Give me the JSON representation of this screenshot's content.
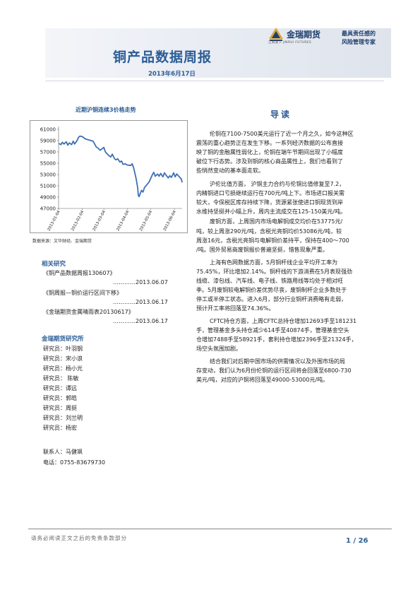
{
  "header": {
    "title": "铜产品数据周报",
    "date": "2013年6月17日",
    "logo_name": "金瑞期货",
    "logo_en": "江铜旗下  JINRUI FUTURES",
    "slogan_1": "最具责任感的",
    "slogan_2": "风险管理专家"
  },
  "chart_data": {
    "type": "line",
    "title": "近期沪铜连续3价格走势",
    "source": "数据来源：文华财经、金瑞期货",
    "ylim": [
      47000,
      61000
    ],
    "yticks": [
      "61000",
      "59000",
      "57000",
      "55000",
      "53000",
      "51000",
      "49000",
      "47000"
    ],
    "xticks": [
      "2013-01-04",
      "2013-02-04",
      "2013-03-04",
      "2013-04-04",
      "2013-05-04",
      "2013-06-04"
    ],
    "series": [
      {
        "color": "#3f6fb5",
        "x": [
          "2013-01-04",
          "2013-01-07",
          "2013-01-09",
          "2013-01-11",
          "2013-01-14",
          "2013-01-16",
          "2013-01-18",
          "2013-01-21",
          "2013-01-23",
          "2013-01-25",
          "2013-01-28",
          "2013-01-30",
          "2013-02-01",
          "2013-02-04",
          "2013-02-06",
          "2013-02-08",
          "2013-02-18",
          "2013-02-20",
          "2013-02-22",
          "2013-02-25",
          "2013-02-27",
          "2013-03-01",
          "2013-03-04",
          "2013-03-06",
          "2013-03-08",
          "2013-03-11",
          "2013-03-13",
          "2013-03-15",
          "2013-03-18",
          "2013-03-20",
          "2013-03-22",
          "2013-03-25",
          "2013-03-27",
          "2013-03-29",
          "2013-04-01",
          "2013-04-03",
          "2013-04-08",
          "2013-04-10",
          "2013-04-12",
          "2013-04-15",
          "2013-04-16",
          "2013-04-17",
          "2013-04-18",
          "2013-04-19",
          "2013-04-22",
          "2013-04-24",
          "2013-04-26",
          "2013-05-02",
          "2013-05-06",
          "2013-05-08",
          "2013-05-10",
          "2013-05-13",
          "2013-05-15",
          "2013-05-17",
          "2013-05-20",
          "2013-05-22",
          "2013-05-24",
          "2013-05-27",
          "2013-05-29",
          "2013-05-31",
          "2013-06-03",
          "2013-06-05",
          "2013-06-07",
          "2013-06-13",
          "2013-06-14"
        ],
        "y": [
          58500,
          58300,
          58700,
          58400,
          58800,
          58200,
          58600,
          58300,
          58900,
          58400,
          59000,
          59600,
          59800,
          59700,
          59500,
          59300,
          58900,
          58400,
          57900,
          57600,
          57300,
          57500,
          57800,
          57000,
          56700,
          56300,
          56100,
          56600,
          55800,
          55600,
          55800,
          55200,
          55400,
          54800,
          54900,
          54700,
          54600,
          54900,
          54100,
          52300,
          51500,
          50700,
          49300,
          49100,
          50200,
          49900,
          50700,
          51700,
          52900,
          53400,
          52700,
          53100,
          52700,
          53200,
          52600,
          53300,
          52900,
          52400,
          52800,
          52500,
          53300,
          52600,
          53100,
          52200,
          51600
        ]
      }
    ]
  },
  "sidebar": {
    "research_heading": "相关研究",
    "reports": [
      {
        "title": "《铜产品数据周报130607》",
        "date": "…………2013.06.07"
      },
      {
        "title": "《铜周报—铜价运行区间下移》",
        "date": "…………2013.06.17"
      },
      {
        "title": "《金瑞期货金属晴雨表20130617》",
        "date": "…………2013.06.17"
      }
    ],
    "institute_heading": "金瑞期货研究所",
    "researchers": [
      "研究员：叶羽钢",
      "研究员：宋小浪",
      "研究员：杨小光",
      "研究员： 陈敏",
      "研究员：谭远",
      "研究员：郭皓",
      "研究员：周挺",
      "研究员：刘兰明",
      "研究员：杨宏"
    ],
    "contact_name": "联系人：马健飒",
    "contact_phone": "电话：0755-83679730"
  },
  "intro": {
    "heading": "导读",
    "lines": [
      "伦铜在7100-7500美元运行了近一个月之久，如今这种区",
      "震荡的重心趋势正在发生下移。一系列经济数据的公布直接",
      "映了铜的金融属性弱化上，伦铜在端午节期间出现了小幅度",
      "破位下行态势。涉及到铜的核心商品属性上，我们也看到了",
      "些悄然变动的基本面走软。",
      "沪伦比值方面， 沪铜主力合约与伦铜比值修复至7.2，",
      "内精铜进口亏损继续运行在700元/吨上下。市场进口报关需",
      "较大，令保税区库存持续下降，货源紧张使进口铜现货到岸",
      "水维持坚挺并小幅上升，周内主流成交在125-150美元/吨。",
      "废铜方面，上周国内市场电解铜成交均价在53775元/",
      "吨，较上周涨290元/吨，含税光亮铜均价53086元/吨，较",
      "周涨16元，含税光亮铜与电解铜价差持平，保持在400～700",
      "/吨。国外贸易商废铜报价普遍坚挺，惜售现象严重。",
      "上海有色网数据方面，5月铜杆线企业平均开工率为",
      "75.45%，环比增加2.14%。铜杆线的下游消费在5月表现强劲",
      "线缆、漆包线、汽车线、电子线、铁路用线等均处于相对旺",
      "季。5月废铜较电解铜价差优势尽丧，废铜制杆企业多数处于",
      "停工或半停工状态。进入6月，部分行业铜杆消费略有走弱，",
      "预计开工率将回落至74.36%。",
      "CFTC持仓方面，上周CFTC总持仓增加12693手至181231",
      "手，管理基金多头持仓减少614手至40874手，管理基金空头",
      "仓增加7488手至58921手，套利持仓增加2396手至21324手，",
      "场空头氛围加剧。",
      "结合我们对后期中国市场的供需情况以及外围市场的局",
      "存变动，我们认为6月份伦铜的运行区间将会回落至6800-730",
      "美元/吨，对应的沪铜将回落至49000-53000元/吨。"
    ]
  },
  "footer": {
    "note": "请务必阅读正文之后的免责条款部分",
    "page": "1 / 26"
  }
}
